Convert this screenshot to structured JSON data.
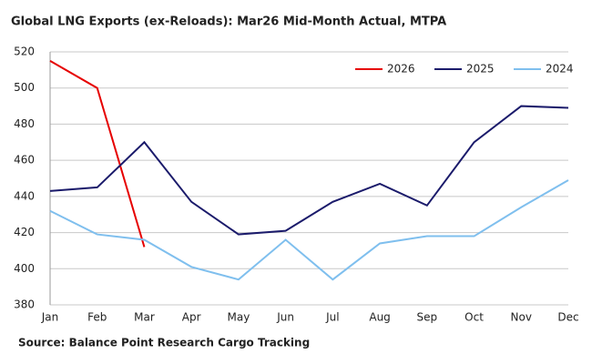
{
  "chart_data": {
    "type": "line",
    "title": "Global LNG Exports (ex-Reloads): Mar26 Mid-Month Actual, MTPA",
    "source": "Source: Balance Point Research Cargo Tracking",
    "categories": [
      "Jan",
      "Feb",
      "Mar",
      "Apr",
      "May",
      "Jun",
      "Jul",
      "Aug",
      "Sep",
      "Oct",
      "Nov",
      "Dec"
    ],
    "series": [
      {
        "name": "2026",
        "color": "#e60000",
        "values": [
          515,
          500,
          412,
          null,
          null,
          null,
          null,
          null,
          null,
          null,
          null,
          null
        ]
      },
      {
        "name": "2025",
        "color": "#1b1b6b",
        "values": [
          443,
          445,
          470,
          437,
          419,
          421,
          437,
          447,
          435,
          470,
          490,
          489
        ]
      },
      {
        "name": "2024",
        "color": "#7fbfee",
        "values": [
          432,
          419,
          416,
          401,
          394,
          416,
          394,
          414,
          418,
          418,
          434,
          449
        ]
      }
    ],
    "ylim": [
      380,
      520
    ],
    "yticks": [
      380,
      400,
      420,
      440,
      460,
      480,
      500,
      520
    ],
    "grid": true,
    "legend": "top-right"
  }
}
